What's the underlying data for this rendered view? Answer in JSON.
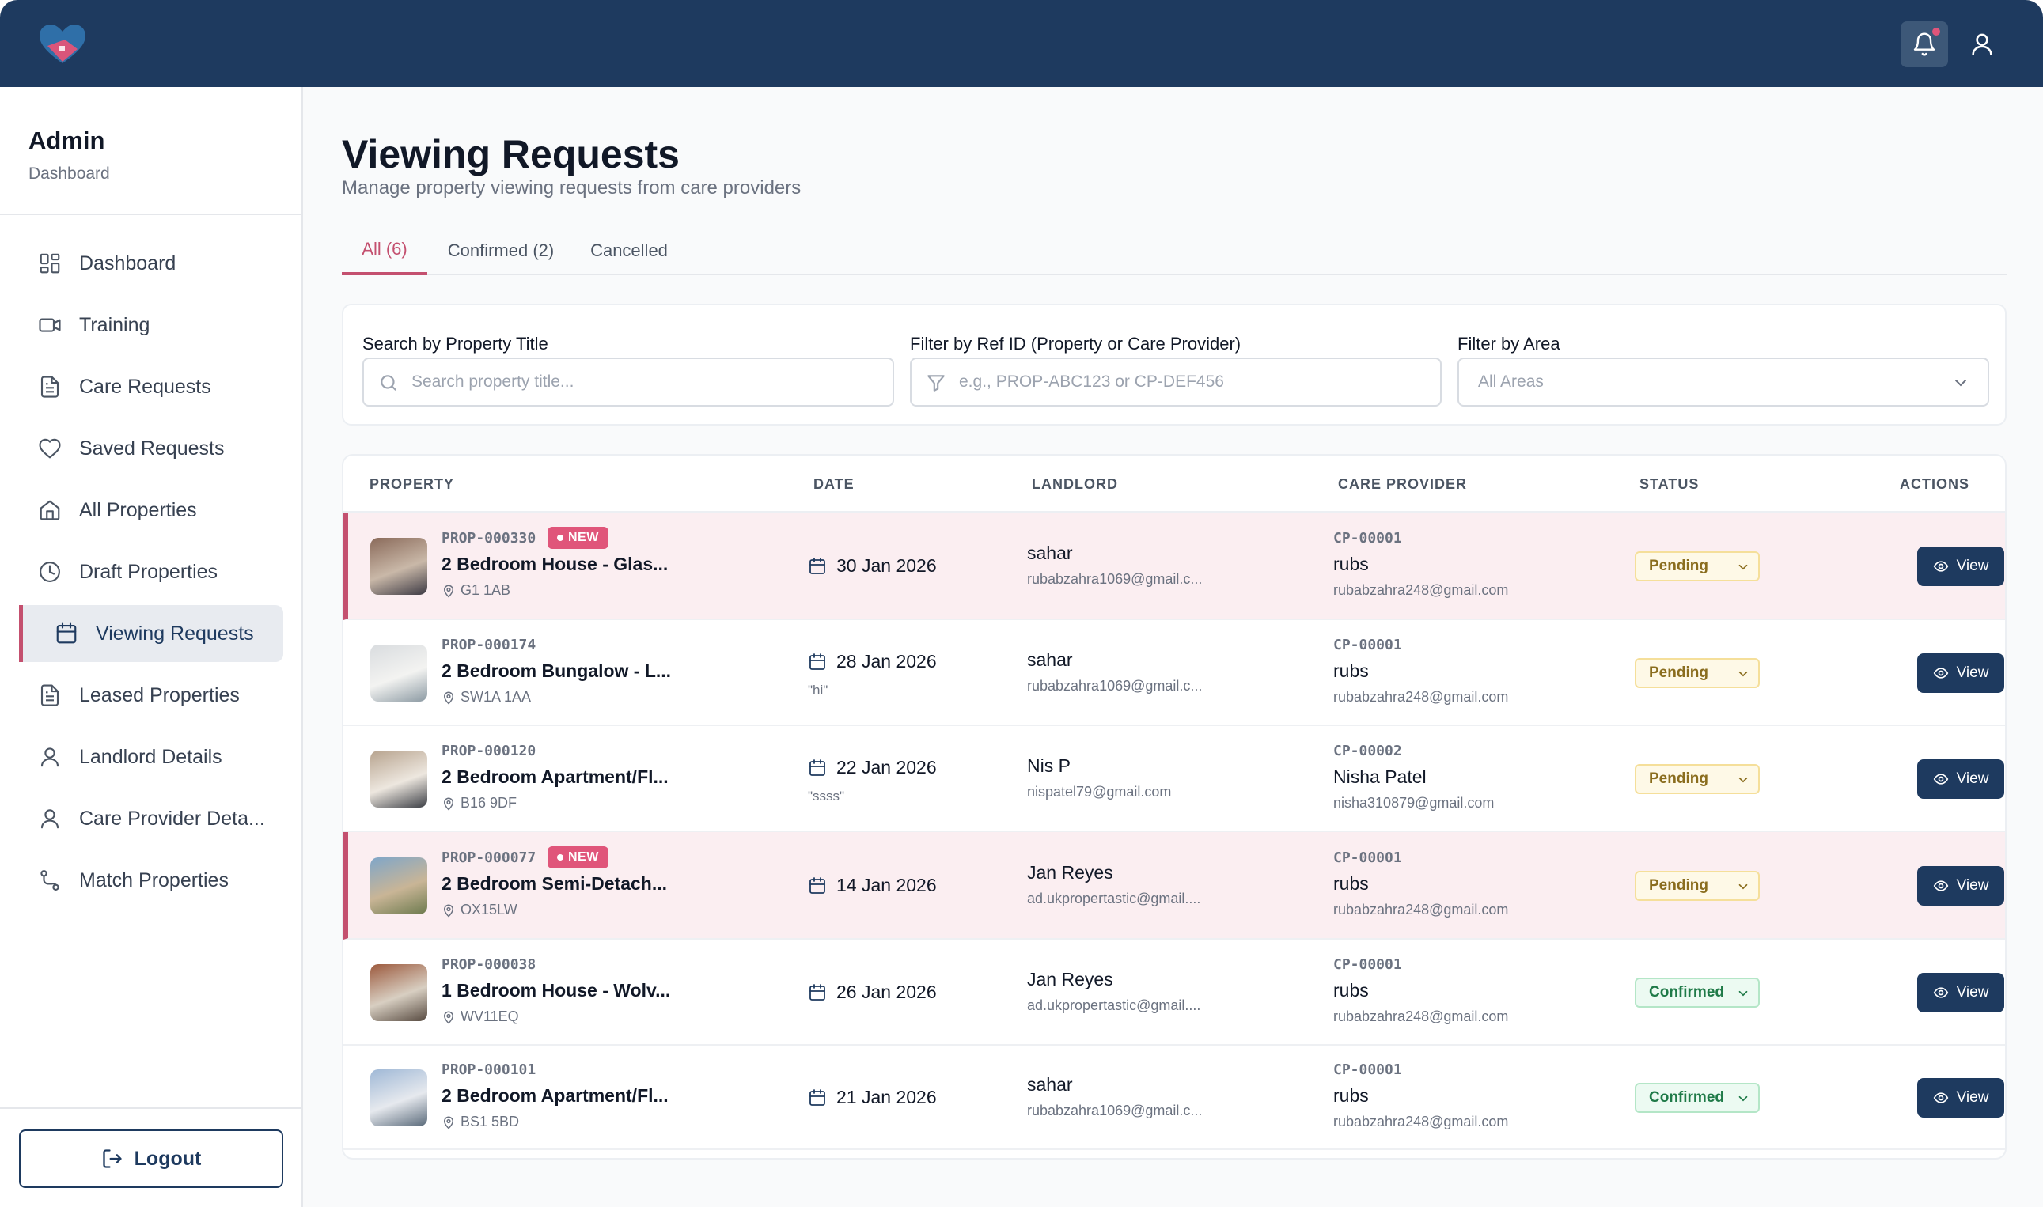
{
  "header": {
    "logo_icon": "heart-house-logo",
    "notifications_icon": "bell-icon",
    "profile_icon": "user-icon"
  },
  "sidebar": {
    "title": "Admin",
    "subtitle": "Dashboard",
    "items": [
      {
        "label": "Dashboard",
        "icon": "grid-icon"
      },
      {
        "label": "Training",
        "icon": "video-icon"
      },
      {
        "label": "Care Requests",
        "icon": "document-icon"
      },
      {
        "label": "Saved Requests",
        "icon": "heart-icon"
      },
      {
        "label": "All Properties",
        "icon": "home-icon"
      },
      {
        "label": "Draft Properties",
        "icon": "clock-icon"
      },
      {
        "label": "Viewing Requests",
        "icon": "calendar-icon",
        "active": true
      },
      {
        "label": "Leased Properties",
        "icon": "document-icon"
      },
      {
        "label": "Landlord Details",
        "icon": "user-icon"
      },
      {
        "label": "Care Provider Deta...",
        "icon": "user-icon"
      },
      {
        "label": "Match Properties",
        "icon": "route-icon"
      }
    ],
    "logout_label": "Logout"
  },
  "main": {
    "title": "Viewing Requests",
    "subtitle": "Manage property viewing requests from care providers",
    "tabs": [
      {
        "label": "All (6)",
        "active": true
      },
      {
        "label": "Confirmed (2)"
      },
      {
        "label": "Cancelled"
      }
    ],
    "filters": {
      "search_label": "Search by Property Title",
      "search_placeholder": "Search property title...",
      "ref_label": "Filter by Ref ID (Property or Care Provider)",
      "ref_placeholder": "e.g., PROP-ABC123 or CP-DEF456",
      "area_label": "Filter by Area",
      "area_value": "All Areas"
    },
    "table": {
      "columns": [
        "PROPERTY",
        "DATE",
        "LANDLORD",
        "CARE PROVIDER",
        "STATUS",
        "ACTIONS"
      ],
      "new_label": "NEW",
      "view_label": "View",
      "rows": [
        {
          "ref": "PROP-000330",
          "is_new": true,
          "title": "2 Bedroom House - Glas...",
          "postcode": "G1 1AB",
          "date": "30 Jan 2026",
          "note": "",
          "landlord_name": "sahar",
          "landlord_email": "rubabzahra1069@gmail.c...",
          "cp_ref": "CP-00001",
          "cp_name": "rubs",
          "cp_email": "rubabzahra248@gmail.com",
          "status": "Pending"
        },
        {
          "ref": "PROP-000174",
          "is_new": false,
          "title": "2 Bedroom Bungalow - L...",
          "postcode": "SW1A 1AA",
          "date": "28 Jan 2026",
          "note": "\"hi\"",
          "landlord_name": "sahar",
          "landlord_email": "rubabzahra1069@gmail.c...",
          "cp_ref": "CP-00001",
          "cp_name": "rubs",
          "cp_email": "rubabzahra248@gmail.com",
          "status": "Pending"
        },
        {
          "ref": "PROP-000120",
          "is_new": false,
          "title": "2 Bedroom Apartment/Fl...",
          "postcode": "B16 9DF",
          "date": "22 Jan 2026",
          "note": "\"ssss\"",
          "landlord_name": "Nis P",
          "landlord_email": "nispatel79@gmail.com",
          "cp_ref": "CP-00002",
          "cp_name": "Nisha Patel",
          "cp_email": "nisha310879@gmail.com",
          "status": "Pending"
        },
        {
          "ref": "PROP-000077",
          "is_new": true,
          "title": "2 Bedroom Semi-Detach...",
          "postcode": "OX15LW",
          "date": "14 Jan 2026",
          "note": "",
          "landlord_name": "Jan Reyes",
          "landlord_email": "ad.ukpropertastic@gmail....",
          "cp_ref": "CP-00001",
          "cp_name": "rubs",
          "cp_email": "rubabzahra248@gmail.com",
          "status": "Pending"
        },
        {
          "ref": "PROP-000038",
          "is_new": false,
          "title": "1 Bedroom House - Wolv...",
          "postcode": "WV11EQ",
          "date": "26 Jan 2026",
          "note": "",
          "landlord_name": "Jan Reyes",
          "landlord_email": "ad.ukpropertastic@gmail....",
          "cp_ref": "CP-00001",
          "cp_name": "rubs",
          "cp_email": "rubabzahra248@gmail.com",
          "status": "Confirmed"
        },
        {
          "ref": "PROP-000101",
          "is_new": false,
          "title": "2 Bedroom Apartment/Fl...",
          "postcode": "BS1 5BD",
          "date": "21 Jan 2026",
          "note": "",
          "landlord_name": "sahar",
          "landlord_email": "rubabzahra1069@gmail.c...",
          "cp_ref": "CP-00001",
          "cp_name": "rubs",
          "cp_email": "rubabzahra248@gmail.com",
          "status": "Confirmed"
        }
      ]
    }
  },
  "colors": {
    "header_bg": "#1e3a5f",
    "accent": "#c4506f",
    "new_badge": "#e0557a",
    "pending_text": "#8a6d1e",
    "confirmed_text": "#1f7a48"
  }
}
